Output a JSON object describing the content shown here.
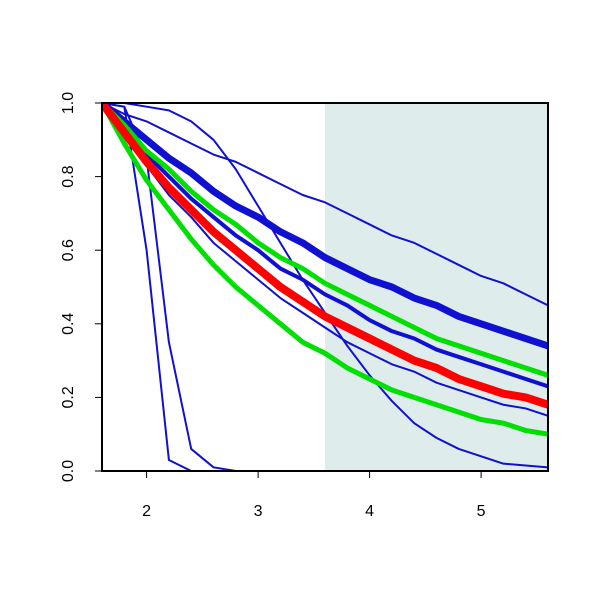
{
  "chart_data": {
    "type": "line",
    "x": [
      1.6,
      1.8,
      2.0,
      2.2,
      2.4,
      2.6,
      2.8,
      3.0,
      3.2,
      3.4,
      3.6,
      3.8,
      4.0,
      4.2,
      4.4,
      4.6,
      4.8,
      5.0,
      5.2,
      5.4,
      5.6
    ],
    "xlim": [
      1.6,
      5.6
    ],
    "ylim": [
      0,
      1
    ],
    "xticks": [
      2,
      3,
      4,
      5
    ],
    "yticks": [
      {
        "value": 0,
        "label": "0.0"
      },
      0.2,
      0.4,
      0.6,
      0.8,
      {
        "value": 1,
        "label": "1.0"
      }
    ],
    "shade": {
      "xlim": [
        3.6,
        5.6
      ],
      "color": "#deecec"
    },
    "series": [
      {
        "color": "#1010d0",
        "linewidth": 2,
        "values": [
          1.0,
          0.99,
          0.6,
          0.03,
          0,
          0,
          0,
          0,
          0,
          0,
          0,
          0,
          0,
          0,
          0,
          0,
          0,
          0,
          0,
          0,
          0
        ]
      },
      {
        "color": "#1010d0",
        "linewidth": 2,
        "values": [
          1.0,
          0.99,
          0.85,
          0.35,
          0.06,
          0.01,
          0,
          0,
          0,
          0,
          0,
          0,
          0,
          0,
          0,
          0,
          0,
          0,
          0,
          0,
          0
        ]
      },
      {
        "color": "#1010d0",
        "linewidth": 2,
        "values": [
          1.0,
          1.0,
          0.99,
          0.98,
          0.95,
          0.9,
          0.82,
          0.72,
          0.62,
          0.52,
          0.43,
          0.34,
          0.26,
          0.19,
          0.13,
          0.09,
          0.06,
          0.04,
          0.02,
          0.015,
          0.01
        ]
      },
      {
        "color": "#1010d0",
        "linewidth": 2,
        "values": [
          1,
          0.97,
          0.95,
          0.92,
          0.89,
          0.86,
          0.84,
          0.81,
          0.78,
          0.75,
          0.73,
          0.7,
          0.67,
          0.64,
          0.62,
          0.59,
          0.56,
          0.53,
          0.51,
          0.48,
          0.45
        ]
      },
      {
        "color": "#1010d0",
        "linewidth": 7,
        "values": [
          1,
          0.95,
          0.9,
          0.85,
          0.81,
          0.76,
          0.72,
          0.69,
          0.65,
          0.62,
          0.58,
          0.55,
          0.52,
          0.5,
          0.47,
          0.45,
          0.42,
          0.4,
          0.38,
          0.36,
          0.34
        ]
      },
      {
        "color": "#1010d0",
        "linewidth": 4,
        "values": [
          1,
          0.93,
          0.86,
          0.8,
          0.74,
          0.69,
          0.64,
          0.6,
          0.55,
          0.52,
          0.48,
          0.45,
          0.41,
          0.38,
          0.36,
          0.33,
          0.31,
          0.29,
          0.27,
          0.25,
          0.23
        ]
      },
      {
        "color": "#1010d0",
        "linewidth": 2,
        "values": [
          1,
          0.91,
          0.83,
          0.75,
          0.69,
          0.62,
          0.57,
          0.52,
          0.47,
          0.43,
          0.39,
          0.35,
          0.32,
          0.29,
          0.27,
          0.24,
          0.22,
          0.2,
          0.18,
          0.17,
          0.15
        ]
      },
      {
        "color": "#00e000",
        "linewidth": 5,
        "values": [
          1,
          0.94,
          0.87,
          0.82,
          0.76,
          0.71,
          0.67,
          0.62,
          0.58,
          0.55,
          0.51,
          0.48,
          0.45,
          0.42,
          0.39,
          0.36,
          0.34,
          0.32,
          0.3,
          0.28,
          0.26
        ]
      },
      {
        "color": "#00e000",
        "linewidth": 5,
        "values": [
          1,
          0.89,
          0.79,
          0.71,
          0.63,
          0.56,
          0.5,
          0.45,
          0.4,
          0.35,
          0.32,
          0.28,
          0.25,
          0.22,
          0.2,
          0.18,
          0.16,
          0.14,
          0.13,
          0.11,
          0.1
        ]
      },
      {
        "color": "#ff0000",
        "linewidth": 8,
        "values": [
          1,
          0.92,
          0.84,
          0.77,
          0.71,
          0.65,
          0.6,
          0.55,
          0.5,
          0.46,
          0.42,
          0.39,
          0.36,
          0.33,
          0.3,
          0.28,
          0.25,
          0.23,
          0.21,
          0.2,
          0.18
        ]
      }
    ]
  }
}
